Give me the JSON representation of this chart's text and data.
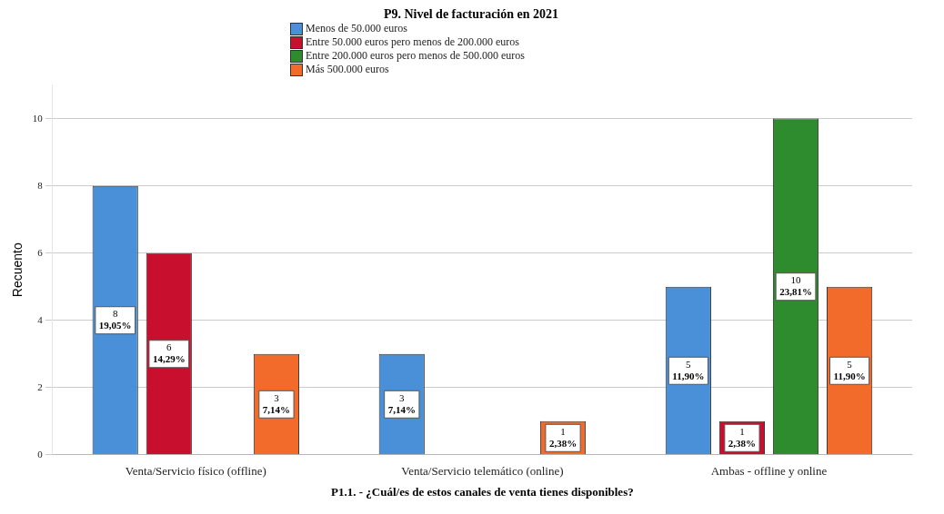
{
  "chart_data": {
    "type": "bar",
    "title": "P9. Nivel de facturación en 2021",
    "xlabel": "P1.1. - ¿Cuál/es de estos canales de venta tienes disponibles?",
    "ylabel": "Recuento",
    "categories": [
      "Venta/Servicio físico (offline)",
      "Venta/Servicio telemático (online)",
      "Ambas - offline y online"
    ],
    "series": [
      {
        "name": "Menos de 50.000 euros",
        "color": "#4a90d9",
        "values": [
          8,
          3,
          5
        ],
        "value_labels": [
          "8\n19,05%",
          "3\n7,14%",
          "5\n11,90%"
        ]
      },
      {
        "name": "Entre 50.000 euros pero menos de 200.000 euros",
        "color": "#c8102e",
        "values": [
          6,
          null,
          1
        ],
        "value_labels": [
          "6\n14,29%",
          null,
          "1\n2,38%"
        ]
      },
      {
        "name": "Entre 200.000 euros pero menos de 500.000 euros",
        "color": "#2e8b2e",
        "values": [
          null,
          null,
          10
        ],
        "value_labels": [
          null,
          null,
          "10\n23,81%"
        ]
      },
      {
        "name": "Más 500.000 euros",
        "color": "#f26b2a",
        "values": [
          3,
          1,
          5
        ],
        "value_labels": [
          "3\n7,14%",
          "1\n2,38%",
          "5\n11,90%"
        ]
      }
    ],
    "ylim": [
      0,
      11
    ],
    "yticks": [
      0,
      2,
      4,
      6,
      8,
      10
    ],
    "grid": "y",
    "legend": "top"
  }
}
